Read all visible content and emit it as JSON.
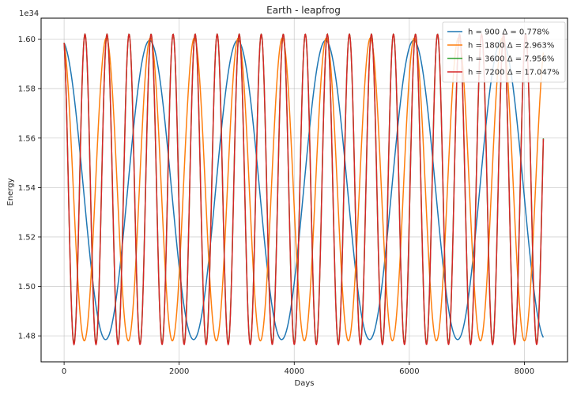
{
  "chart_data": {
    "type": "line",
    "title": "Earth - leapfrog",
    "xlabel": "Days",
    "ylabel": "Energy",
    "y_offset_label": "1e34",
    "xlim": [
      -400,
      8750
    ],
    "ylim": [
      1.4695,
      1.6085
    ],
    "x_ticks": [
      0,
      2000,
      4000,
      6000,
      8000
    ],
    "x_tick_labels": [
      "0",
      "2000",
      "4000",
      "6000",
      "8000"
    ],
    "y_ticks": [
      1.48,
      1.5,
      1.52,
      1.54,
      1.56,
      1.58,
      1.6
    ],
    "y_tick_labels": [
      "1.48",
      "1.50",
      "1.52",
      "1.54",
      "1.56",
      "1.58",
      "1.60"
    ],
    "grid": true,
    "legend_position": "top-right",
    "x_range": [
      0,
      8330
    ],
    "series": [
      {
        "name": "h = 900 Δ =  0.778%",
        "color": "#1f77b4",
        "period_days": 1530,
        "start": 1.5985,
        "min": 1.4785,
        "max": 1.5995
      },
      {
        "name": "h = 1800 Δ =  2.963%",
        "color": "#ff7f0e",
        "period_days": 765,
        "start": 1.5985,
        "min": 1.478,
        "max": 1.6005
      },
      {
        "name": "h = 3600 Δ =  7.956%",
        "color": "#2ca02c",
        "period_days": 383,
        "start": 1.5985,
        "min": 1.477,
        "max": 1.602
      },
      {
        "name": "h = 7200 Δ =  17.047%",
        "color": "#d62728",
        "period_days": 383,
        "start": 1.5985,
        "min": 1.4765,
        "max": 1.602
      }
    ]
  }
}
